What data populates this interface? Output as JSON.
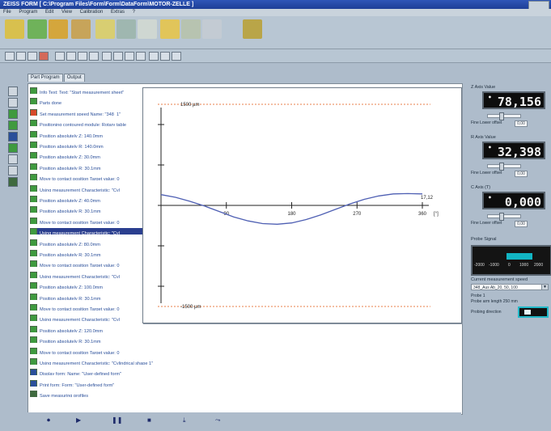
{
  "window": {
    "title": "ZEISS FORM [ C:\\Program Files\\Form\\Form\\DataForm\\MOTOR-ZELLE ]"
  },
  "menu": [
    "File",
    "Program",
    "Edit",
    "View",
    "Calibration",
    "Extras",
    "?"
  ],
  "tabs": [
    {
      "label": "Part Program"
    },
    {
      "label": "Output"
    }
  ],
  "steps": [
    {
      "text": "Info Text: Text: \"Start measurement sheet\"",
      "icon_color": "#3f9a3f",
      "selected": false
    },
    {
      "text": "Parts done",
      "icon_color": "#3f9a3f",
      "selected": false
    },
    {
      "text": "Set measurement speed Name: \"348_1\"",
      "icon_color": "#d64a2a",
      "selected": false
    },
    {
      "text": "Positioning contoured module: Rotary table",
      "icon_color": "#3f9a3f",
      "selected": false
    },
    {
      "text": "Position absolutely Z: 140.0mm",
      "icon_color": "#3f9a3f",
      "selected": false
    },
    {
      "text": "Position absolutely R: 140.0mm",
      "icon_color": "#3f9a3f",
      "selected": false
    },
    {
      "text": "Position absolutely Z: 30.0mm",
      "icon_color": "#3f9a3f",
      "selected": false
    },
    {
      "text": "Position absolutely R: 30.1mm",
      "icon_color": "#3f9a3f",
      "selected": false
    },
    {
      "text": "Move to contact position Target value: 0",
      "icon_color": "#3f9a3f",
      "selected": false
    },
    {
      "text": "Using measurement Characteristic: \"Cyl",
      "icon_color": "#3f9a3f",
      "selected": false
    },
    {
      "text": "Position absolutely Z: 40.0mm",
      "icon_color": "#3f9a3f",
      "selected": false
    },
    {
      "text": "Position absolutely R: 30.1mm",
      "icon_color": "#3f9a3f",
      "selected": false
    },
    {
      "text": "Move to contact position Target value: 0",
      "icon_color": "#3f9a3f",
      "selected": false
    },
    {
      "text": "Using measurement Characteristic: \"Cyl",
      "icon_color": "#3f9a3f",
      "selected": true
    },
    {
      "text": "Position absolutely Z: 80.0mm",
      "icon_color": "#3f9a3f",
      "selected": false
    },
    {
      "text": "Position absolutely R: 30.1mm",
      "icon_color": "#3f9a3f",
      "selected": false
    },
    {
      "text": "Move to contact position Target value: 0",
      "icon_color": "#3f9a3f",
      "selected": false
    },
    {
      "text": "Using measurement Characteristic: \"Cyl",
      "icon_color": "#3f9a3f",
      "selected": false
    },
    {
      "text": "Position absolutely Z: 100.0mm",
      "icon_color": "#3f9a3f",
      "selected": false
    },
    {
      "text": "Position absolutely R: 30.1mm",
      "icon_color": "#3f9a3f",
      "selected": false
    },
    {
      "text": "Move to contact position Target value: 0",
      "icon_color": "#3f9a3f",
      "selected": false
    },
    {
      "text": "Using measurement Characteristic: \"Cyl",
      "icon_color": "#3f9a3f",
      "selected": false
    },
    {
      "text": "Position absolutely Z: 120.0mm",
      "icon_color": "#3f9a3f",
      "selected": false
    },
    {
      "text": "Position absolutely R: 30.1mm",
      "icon_color": "#3f9a3f",
      "selected": false
    },
    {
      "text": "Move to contact position Target value: 0",
      "icon_color": "#3f9a3f",
      "selected": false
    },
    {
      "text": "Using measurement Characteristic: \"Cylindrical shape 1\"",
      "icon_color": "#3f9a3f",
      "selected": false
    },
    {
      "text": "Display form: Name: \"User-defined form\"",
      "icon_color": "#2a4f9a",
      "selected": false
    },
    {
      "text": "Print form: Form: \"User-defined form\"",
      "icon_color": "#2a4f9a",
      "selected": false
    },
    {
      "text": "Save measuring profiles",
      "icon_color": "#3f6a3f",
      "selected": false
    }
  ],
  "playback": [
    {
      "name": "record-button",
      "glyph": "⏺"
    },
    {
      "name": "play-button",
      "glyph": "▶"
    },
    {
      "name": "pause-button",
      "glyph": "❚❚"
    },
    {
      "name": "stop-button",
      "glyph": "■"
    },
    {
      "name": "step-button",
      "glyph": "⤓"
    },
    {
      "name": "step-over-button",
      "glyph": "⤳"
    }
  ],
  "chart_data": {
    "type": "line",
    "upper_limit_label": "1500 µm",
    "lower_limit_label": "-1500 µm",
    "x_ticks": [
      90,
      180,
      270,
      360
    ],
    "x_unit": "[°]",
    "end_value_label": "17,12",
    "xlim": [
      0,
      360
    ],
    "ylim": [
      -1500,
      1500
    ],
    "series": [
      {
        "color": "#4e5fb3",
        "x": [
          0,
          20,
          40,
          60,
          80,
          100,
          120,
          140,
          160,
          180,
          200,
          220,
          240,
          260,
          280,
          300,
          320,
          340,
          360
        ],
        "y": [
          160,
          120,
          60,
          -10,
          -90,
          -170,
          -230,
          -270,
          -280,
          -260,
          -210,
          -140,
          -60,
          20,
          90,
          140,
          170,
          175,
          170
        ]
      }
    ]
  },
  "right_panel": {
    "lcd1": {
      "label": "Z Axis Value",
      "value": "78,156",
      "sub_label": "Fine Lower offset",
      "box": "0,00"
    },
    "lcd2": {
      "label": "R Axis Value",
      "value": "32,398",
      "sub_label": "Fine Lower offset",
      "box": "0,00"
    },
    "lcd3": {
      "label": "C Axis (T)",
      "value": "0,000",
      "sub_label": "Fine Lower offset",
      "box": "0,00"
    },
    "rotary": {
      "label": "Probe Signal",
      "scale": [
        "-2000",
        "-1000",
        "0",
        "1000",
        "2000"
      ],
      "level": 0.55
    },
    "combo": {
      "label": "Current measurement speed",
      "value": "348_Aus Ab_20, 50, 100"
    },
    "info1": "Probe 1",
    "info2": "Probe arm length 250 mm",
    "toggle_label": "Probing direction"
  },
  "colors": {
    "accent_title": "#2f56b8",
    "chart_limit_line": "#e87f4a",
    "chart_curve": "#4e5fb3",
    "lcd_bg": "#0d0d0d",
    "selection": "#2b3f8f"
  }
}
